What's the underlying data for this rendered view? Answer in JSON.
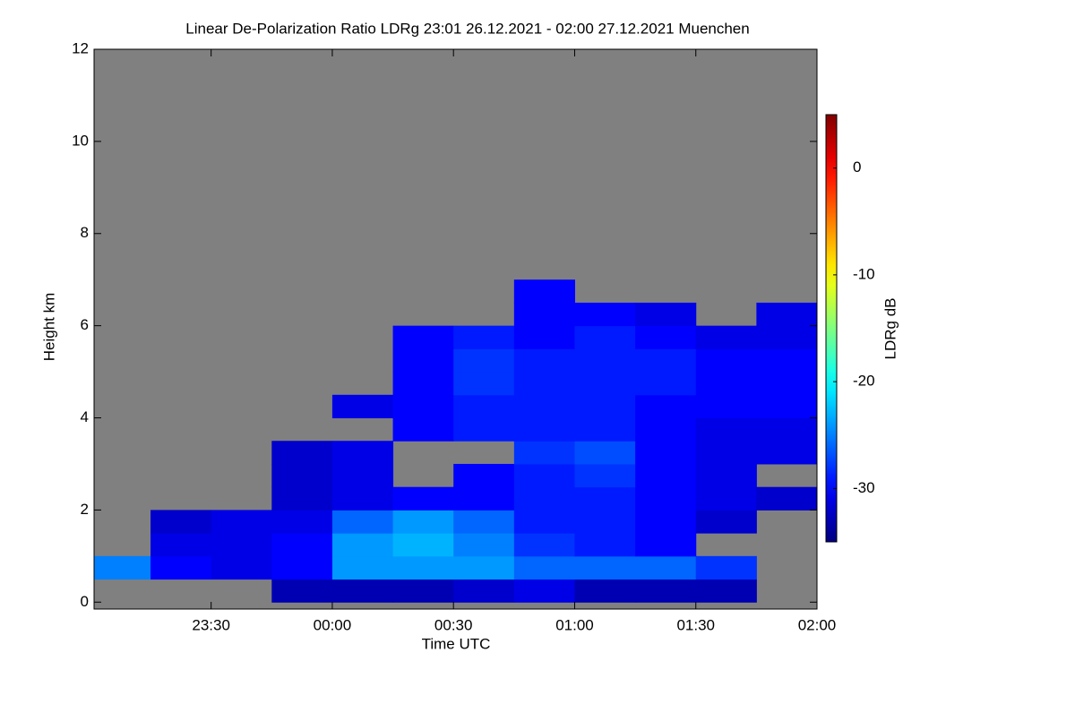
{
  "chart_data": {
    "type": "heatmap",
    "title": "Linear De-Polarization Ratio LDRg   23:01 26.12.2021 - 02:00 27.12.2021 Muenchen",
    "x_label": "Time UTC",
    "y_label": "Height km",
    "colorbar_label": "LDRg dB",
    "colormap": "jet",
    "missing_color": "#808080",
    "xlim": [
      -0.983,
      2
    ],
    "xticks": [
      {
        "value": -0.5,
        "label": "23:30"
      },
      {
        "value": 0,
        "label": "00:00"
      },
      {
        "value": 0.5,
        "label": "00:30"
      },
      {
        "value": 1,
        "label": "01:00"
      },
      {
        "value": 1.5,
        "label": "01:30"
      },
      {
        "value": 2,
        "label": "02:00"
      }
    ],
    "ylim": [
      -0.15,
      12
    ],
    "yticks": [
      0,
      2,
      4,
      6,
      8,
      10,
      12
    ],
    "clim": [
      -35,
      5
    ],
    "cticks": [
      -30,
      -20,
      -10,
      0
    ],
    "x": [
      -0.875,
      -0.625,
      -0.375,
      -0.125,
      0.125,
      0.375,
      0.625,
      0.875,
      1.125,
      1.375,
      1.625,
      1.875
    ],
    "y": [
      0.25,
      0.75,
      1.25,
      1.75,
      2.25,
      2.75,
      3.25,
      3.75,
      4.25,
      4.75,
      5.25,
      5.75,
      6.25,
      6.75
    ],
    "values": [
      [
        null,
        null,
        null,
        -33,
        -33,
        -33,
        -32,
        -31,
        -33,
        -33,
        -33,
        null
      ],
      [
        -25,
        -30,
        -31,
        -30,
        -24,
        -24,
        -24,
        -26,
        -26,
        -26,
        -28,
        null
      ],
      [
        null,
        -31,
        -31,
        -30,
        -24,
        -23,
        -25,
        -28,
        -29,
        -30,
        null,
        null
      ],
      [
        null,
        -32,
        -31,
        -31,
        -26,
        -24,
        -26,
        -29,
        -29,
        -30,
        -32,
        null
      ],
      [
        null,
        null,
        null,
        -32,
        -31,
        -30,
        -30,
        -29,
        -29,
        -30,
        -31,
        -32
      ],
      [
        null,
        null,
        null,
        -32,
        -31,
        null,
        -30,
        -29,
        -28,
        -30,
        -31,
        null
      ],
      [
        null,
        null,
        null,
        -32,
        -31,
        null,
        null,
        -28,
        -27,
        -30,
        -31,
        -31
      ],
      [
        null,
        null,
        null,
        null,
        null,
        -30,
        -29,
        -29,
        -29,
        -30,
        -31,
        -31
      ],
      [
        null,
        null,
        null,
        null,
        -31,
        -30,
        -29,
        -29,
        -29,
        -30,
        -30,
        -30
      ],
      [
        null,
        null,
        null,
        null,
        null,
        -30,
        -28,
        -29,
        -29,
        -29,
        -30,
        -30
      ],
      [
        null,
        null,
        null,
        null,
        null,
        -30,
        -28,
        -29,
        -29,
        -29,
        -30,
        -30
      ],
      [
        null,
        null,
        null,
        null,
        null,
        -30,
        -29,
        -30,
        -29,
        -30,
        -31,
        -31
      ],
      [
        null,
        null,
        null,
        null,
        null,
        null,
        null,
        -30,
        -30,
        -31,
        null,
        -31
      ],
      [
        null,
        null,
        null,
        null,
        null,
        null,
        null,
        -30,
        null,
        null,
        null,
        null
      ]
    ]
  }
}
